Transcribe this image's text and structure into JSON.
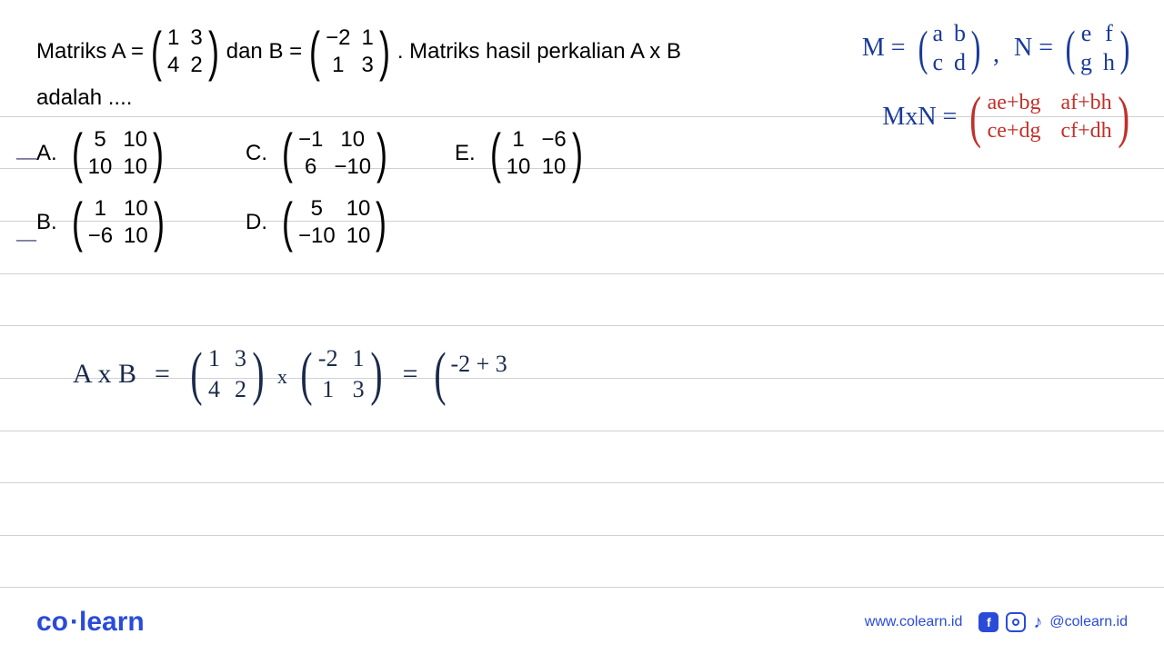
{
  "colors": {
    "text": "#000000",
    "hw_blue": "#1a3a9a",
    "hw_red": "#c0302a",
    "rule_line": "#d0d0d5",
    "brand": "#2a4bd8",
    "background": "#ffffff"
  },
  "ruled_line_positions": [
    128,
    185,
    243,
    301,
    358,
    416,
    474,
    531,
    589,
    646
  ],
  "problem": {
    "line1_pre": "Matriks A =",
    "matA": [
      [
        "1",
        "3"
      ],
      [
        "4",
        "2"
      ]
    ],
    "line1_mid": "dan B =",
    "matB": [
      [
        "−2",
        "1"
      ],
      [
        "1",
        "3"
      ]
    ],
    "line1_post": ". Matriks hasil perkalian A x B",
    "line2": "adalah  ...."
  },
  "options": {
    "A": [
      [
        "5",
        "10"
      ],
      [
        "10",
        "10"
      ]
    ],
    "B": [
      [
        "1",
        "10"
      ],
      [
        "−6",
        "10"
      ]
    ],
    "C": [
      [
        "−1",
        "10"
      ],
      [
        "6",
        "−10"
      ]
    ],
    "D": [
      [
        "5",
        "10"
      ],
      [
        "−10",
        "10"
      ]
    ],
    "E": [
      [
        "1",
        "−6"
      ],
      [
        "10",
        "10"
      ]
    ]
  },
  "ticks": {
    "A": "—",
    "B": "—"
  },
  "handwriting_top": {
    "M_label": "M =",
    "M": [
      [
        "a",
        "b"
      ],
      [
        "c",
        "d"
      ]
    ],
    "comma": ",",
    "N_label": "N =",
    "N": [
      [
        "e",
        "f"
      ],
      [
        "g",
        "h"
      ]
    ],
    "MxN_label": "MxN =",
    "MxN": [
      [
        "ae+bg",
        "af+bh"
      ],
      [
        "ce+dg",
        "cf+dh"
      ]
    ]
  },
  "handwriting_work": {
    "lhs": "A x B",
    "eq1": "=",
    "mat1": [
      [
        "1",
        "3"
      ],
      [
        "4",
        "2"
      ]
    ],
    "times": "x",
    "mat2": [
      [
        "-2",
        "1"
      ],
      [
        "1",
        "3"
      ]
    ],
    "eq2": "=",
    "partial_open": "(",
    "partial_entry": "-2 + 3"
  },
  "footer": {
    "logo_pre": "co",
    "logo_dot": "·",
    "logo_post": "learn",
    "url": "www.colearn.id",
    "handle": "@colearn.id"
  }
}
